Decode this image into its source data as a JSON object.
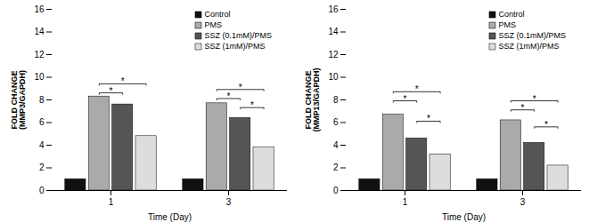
{
  "chart_data": [
    {
      "type": "bar",
      "xlabel": "Time (Day)",
      "ylabel": "FOLD CHANGE\n(MMP3/GAPDH)",
      "categories": [
        "1",
        "3"
      ],
      "series": [
        {
          "name": "Control",
          "color": "#111111",
          "values": [
            1.0,
            1.0
          ]
        },
        {
          "name": "PMS",
          "color": "#aaaaaa",
          "values": [
            8.3,
            7.7
          ]
        },
        {
          "name": "SSZ (0.1mM)/PMS",
          "color": "#555555",
          "values": [
            7.6,
            6.4
          ]
        },
        {
          "name": "SSZ (1mM)/PMS",
          "color": "#dddddd",
          "values": [
            4.8,
            3.8
          ]
        }
      ],
      "ylim": [
        0,
        16
      ],
      "yticks": [
        0,
        2,
        4,
        6,
        8,
        10,
        12,
        14,
        16
      ],
      "grid": false,
      "legend": "upper right",
      "annotations": [
        {
          "text": "*",
          "category": "1",
          "from": "PMS",
          "to": "SSZ (1mM)/PMS",
          "y": 9.3
        },
        {
          "text": "*",
          "category": "1",
          "from": "PMS",
          "to": "SSZ (0.1mM)/PMS",
          "y": 8.5
        },
        {
          "text": "*",
          "category": "3",
          "from": "PMS",
          "to": "SSZ (1mM)/PMS",
          "y": 8.8
        },
        {
          "text": "*",
          "category": "3",
          "from": "PMS",
          "to": "SSZ (0.1mM)/PMS",
          "y": 8.0
        },
        {
          "text": "*",
          "category": "3",
          "from": "SSZ (0.1mM)/PMS",
          "to": "SSZ (1mM)/PMS",
          "y": 7.2
        }
      ]
    },
    {
      "type": "bar",
      "xlabel": "Time (Day)",
      "ylabel": "FOLD CHANGE\n(MMP13/GAPDH)",
      "categories": [
        "1",
        "3"
      ],
      "series": [
        {
          "name": "Control",
          "color": "#111111",
          "values": [
            1.0,
            1.0
          ]
        },
        {
          "name": "PMS",
          "color": "#aaaaaa",
          "values": [
            6.7,
            6.2
          ]
        },
        {
          "name": "SSZ (0.1mM)/PMS",
          "color": "#555555",
          "values": [
            4.6,
            4.2
          ]
        },
        {
          "name": "SSZ (1mM)/PMS",
          "color": "#dddddd",
          "values": [
            3.2,
            2.2
          ]
        }
      ],
      "ylim": [
        0,
        16
      ],
      "yticks": [
        0,
        2,
        4,
        6,
        8,
        10,
        12,
        14,
        16
      ],
      "grid": false,
      "legend": "upper right",
      "annotations": [
        {
          "text": "*",
          "category": "1",
          "from": "PMS",
          "to": "SSZ (1mM)/PMS",
          "y": 8.6
        },
        {
          "text": "*",
          "category": "1",
          "from": "PMS",
          "to": "SSZ (0.1mM)/PMS",
          "y": 7.8
        },
        {
          "text": "*",
          "category": "1",
          "from": "SSZ (0.1mM)/PMS",
          "to": "SSZ (1mM)/PMS",
          "y": 6.0
        },
        {
          "text": "*",
          "category": "3",
          "from": "PMS",
          "to": "SSZ (1mM)/PMS",
          "y": 7.8
        },
        {
          "text": "*",
          "category": "3",
          "from": "PMS",
          "to": "SSZ (0.1mM)/PMS",
          "y": 7.0
        },
        {
          "text": "*",
          "category": "3",
          "from": "SSZ (0.1mM)/PMS",
          "to": "SSZ (1mM)/PMS",
          "y": 5.5
        }
      ]
    }
  ]
}
